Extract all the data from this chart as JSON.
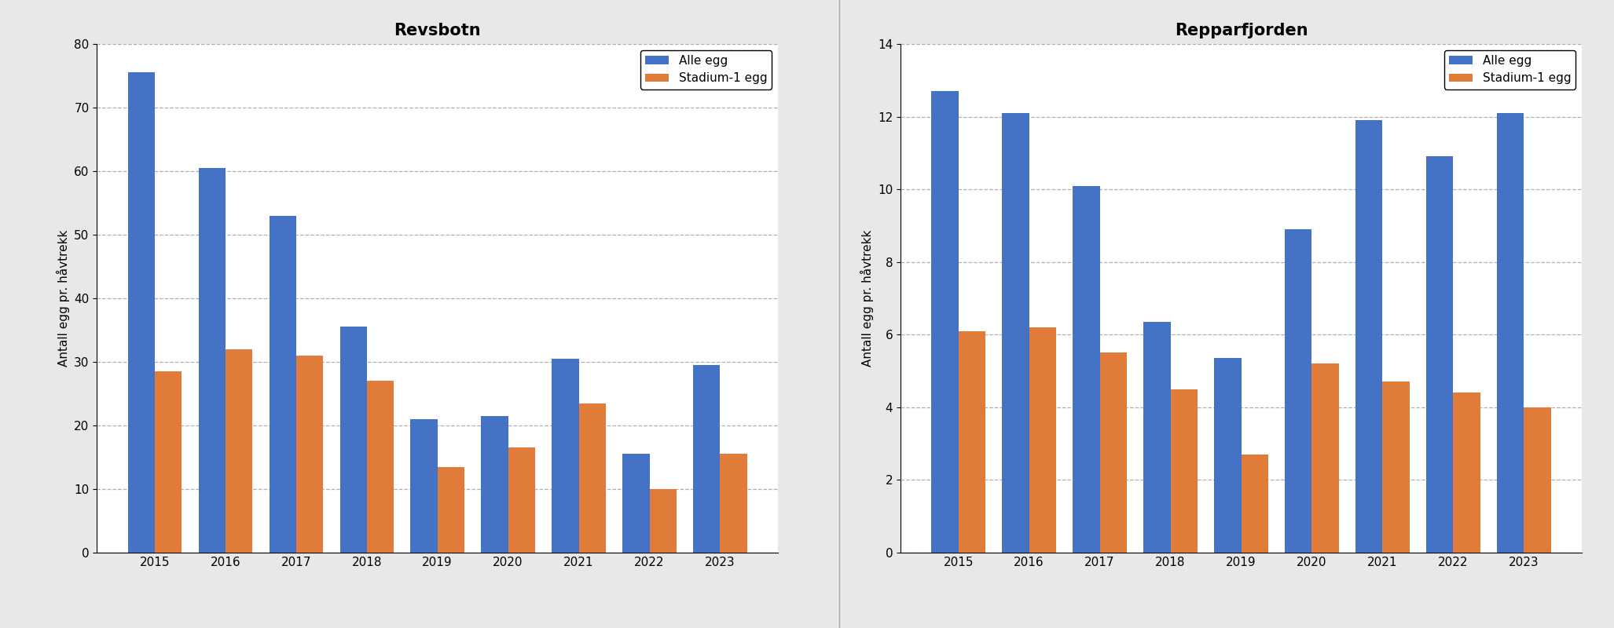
{
  "revsbotn": {
    "title": "Revsbotn",
    "years": [
      2015,
      2016,
      2017,
      2018,
      2019,
      2020,
      2021,
      2022,
      2023
    ],
    "alle_egg": [
      75.5,
      60.5,
      53.0,
      35.5,
      21.0,
      21.5,
      30.5,
      15.5,
      29.5
    ],
    "stadium1_egg": [
      28.5,
      32.0,
      31.0,
      27.0,
      13.5,
      16.5,
      23.5,
      10.0,
      15.5
    ],
    "ylim": [
      0,
      80
    ],
    "yticks": [
      0,
      10,
      20,
      30,
      40,
      50,
      60,
      70,
      80
    ]
  },
  "repparfjorden": {
    "title": "Repparfjorden",
    "years": [
      2015,
      2016,
      2017,
      2018,
      2019,
      2020,
      2021,
      2022,
      2023
    ],
    "alle_egg": [
      12.7,
      12.1,
      10.1,
      6.35,
      5.35,
      8.9,
      11.9,
      10.9,
      12.1
    ],
    "stadium1_egg": [
      6.1,
      6.2,
      5.5,
      4.5,
      2.7,
      5.2,
      4.7,
      4.4,
      4.0
    ],
    "ylim": [
      0,
      14
    ],
    "yticks": [
      0,
      2,
      4,
      6,
      8,
      10,
      12,
      14
    ]
  },
  "blue_color": "#4472C4",
  "orange_color": "#E07B39",
  "legend_labels": [
    "Alle egg",
    "Stadium-1 egg"
  ],
  "ylabel": "Antall egg pr. håvtrekk",
  "title_fontsize": 15,
  "label_fontsize": 11,
  "tick_fontsize": 11,
  "legend_fontsize": 11,
  "bar_width": 0.38,
  "figure_facecolor": "#E8E8E8",
  "axes_facecolor": "#ffffff"
}
